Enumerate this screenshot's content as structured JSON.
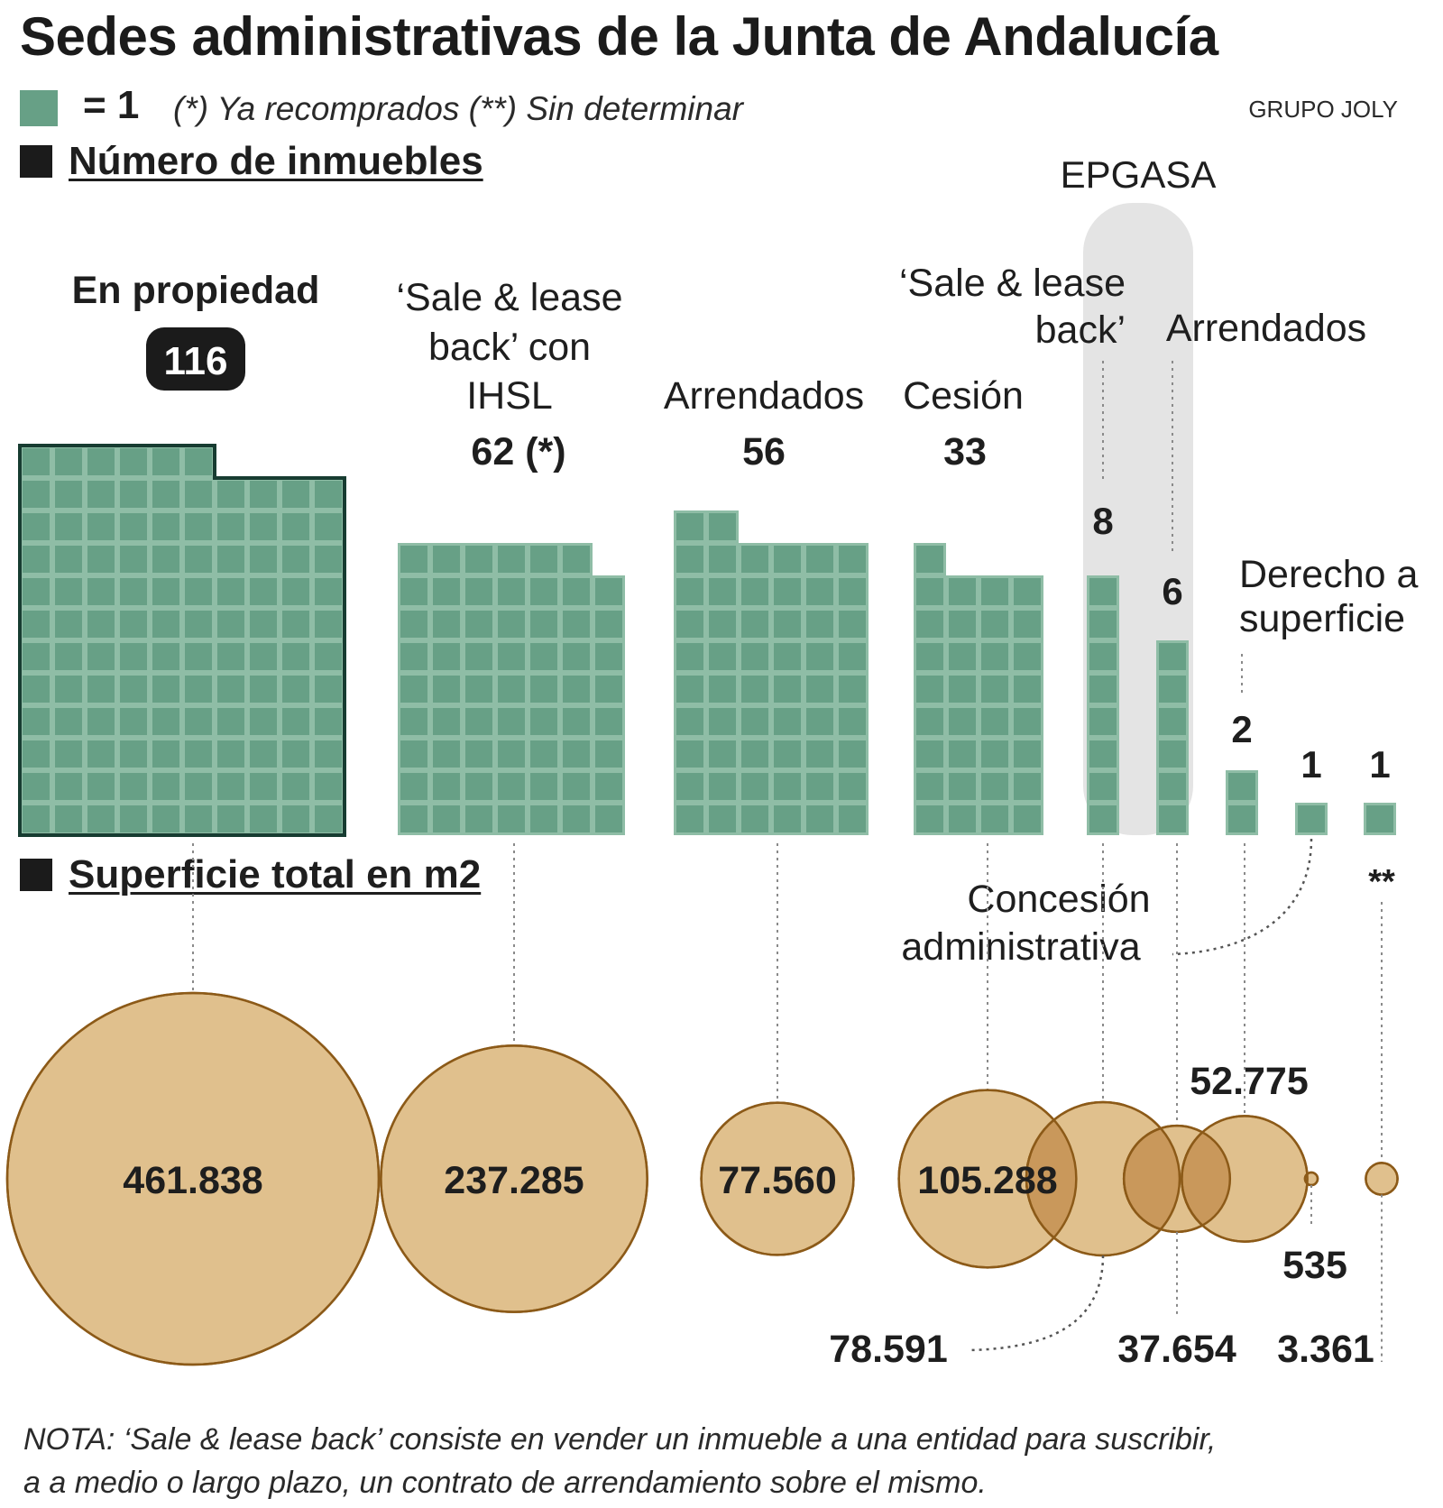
{
  "title": "Sedes administrativas de la Junta de Andalucía",
  "legend": {
    "unit_label": "= 1",
    "note": "(*) Ya recomprados (**) Sin determinar",
    "square_color": "#67a086"
  },
  "credit": "GRUPO JOLY",
  "sections": {
    "count_title": "Número de inmuebles",
    "area_title": "Superficie total en m2"
  },
  "chart_data": [
    {
      "type": "waffle",
      "title": "Número de inmuebles",
      "unit": "= 1",
      "group_label": "EPGASA",
      "categories": [
        {
          "name_lines": [
            "En propiedad"
          ],
          "value": 116,
          "value_label": "116",
          "cols": 10,
          "highlight": true
        },
        {
          "name_lines": [
            "‘Sale & lease",
            "back’ con",
            "IHSL"
          ],
          "value": 62,
          "value_label": "62 (*)",
          "cols": 7
        },
        {
          "name_lines": [
            "Arrendados"
          ],
          "value": 56,
          "value_label": "56",
          "cols": 6
        },
        {
          "name_lines": [
            "Cesión"
          ],
          "value": 33,
          "value_label": "33",
          "cols": 4
        },
        {
          "name_lines": [
            "‘Sale & lease",
            "back’"
          ],
          "value": 8,
          "value_label": "8",
          "cols": 1,
          "group": "EPGASA"
        },
        {
          "name_lines": [
            "Arrendados"
          ],
          "value": 6,
          "value_label": "6",
          "cols": 1,
          "group": "EPGASA"
        },
        {
          "name_lines": [
            "Derecho a",
            "superficie"
          ],
          "value": 2,
          "value_label": "2",
          "cols": 1
        },
        {
          "name_lines": [
            "Concesión",
            "administrativa"
          ],
          "value": 1,
          "value_label": "1",
          "cols": 1
        },
        {
          "name_lines": [],
          "value": 1,
          "value_label": "1",
          "cols": 1,
          "marker": "**"
        }
      ]
    },
    {
      "type": "bubble",
      "title": "Superficie total en m2",
      "unit": "m2",
      "values": [
        461838,
        237285,
        77560,
        105288,
        78591,
        37654,
        52775,
        535,
        3361
      ],
      "labels": [
        "461.838",
        "237.285",
        "77.560",
        "105.288",
        "78.591",
        "37.654",
        "52.775",
        "535",
        "3.361"
      ]
    }
  ],
  "nota": {
    "line1": "NOTA: ‘Sale & lease back’ consiste en vender un inmueble a una entidad para suscribir,",
    "line2": "a a medio o largo plazo, un contrato de arrendamiento sobre el mismo."
  },
  "colors": {
    "square": "#67a086",
    "square_border": "#8fbda6",
    "dark_border": "#173c31",
    "bubble": "#e0c08d",
    "bubble_stroke": "#8c5a18",
    "bubble_overlap": "#c9985b",
    "epgasa_band": "#e4e4e4",
    "badge": "#1b1b1b"
  }
}
